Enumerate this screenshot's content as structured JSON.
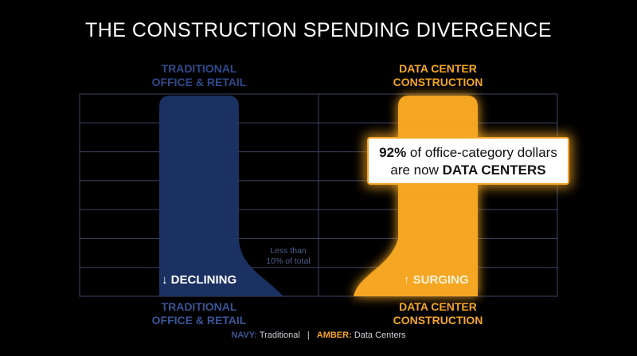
{
  "title": "THE CONSTRUCTION SPENDING DIVERGENCE",
  "colors": {
    "navy": "#1c3466",
    "amber": "#f5a623",
    "grid": "#3c4566"
  },
  "chart_data": {
    "type": "bar",
    "categories": [
      "TRADITIONAL OFFICE & RETAIL",
      "DATA CENTER CONSTRUCTION"
    ],
    "top_labels": [
      "TRADITIONAL\nOFFICE & RETAIL",
      "DATA CENTER\nCONSTRUCTION"
    ],
    "bottom_labels": [
      "TRADITIONAL\nOFFICE & RETAIL",
      "DATA CENTER\nCONSTRUCTION"
    ],
    "series": [
      {
        "name": "Traditional",
        "category": "TRADITIONAL OFFICE & RETAIL",
        "trend": "DECLINING",
        "arrow": "↓",
        "color": "#1c3466"
      },
      {
        "name": "Data Centers",
        "category": "DATA CENTER CONSTRUCTION",
        "trend": "SURGING",
        "arrow": "↑",
        "color": "#f5a623"
      }
    ],
    "share_data_centers_pct": 92,
    "share_traditional_max_pct": 10,
    "grid": true,
    "annotations": {
      "note": "Less than\n10% of total",
      "callout_value": "92%",
      "callout_text_1": " of office-category dollars",
      "callout_text_2": "are now ",
      "callout_emph": "DATA CENTERS"
    },
    "legend": {
      "navy_key": "NAVY:",
      "navy_text": "Traditional",
      "separator": "|",
      "amber_key": "AMBER:",
      "amber_text": "Data Centers",
      "placement": "bottom"
    }
  }
}
